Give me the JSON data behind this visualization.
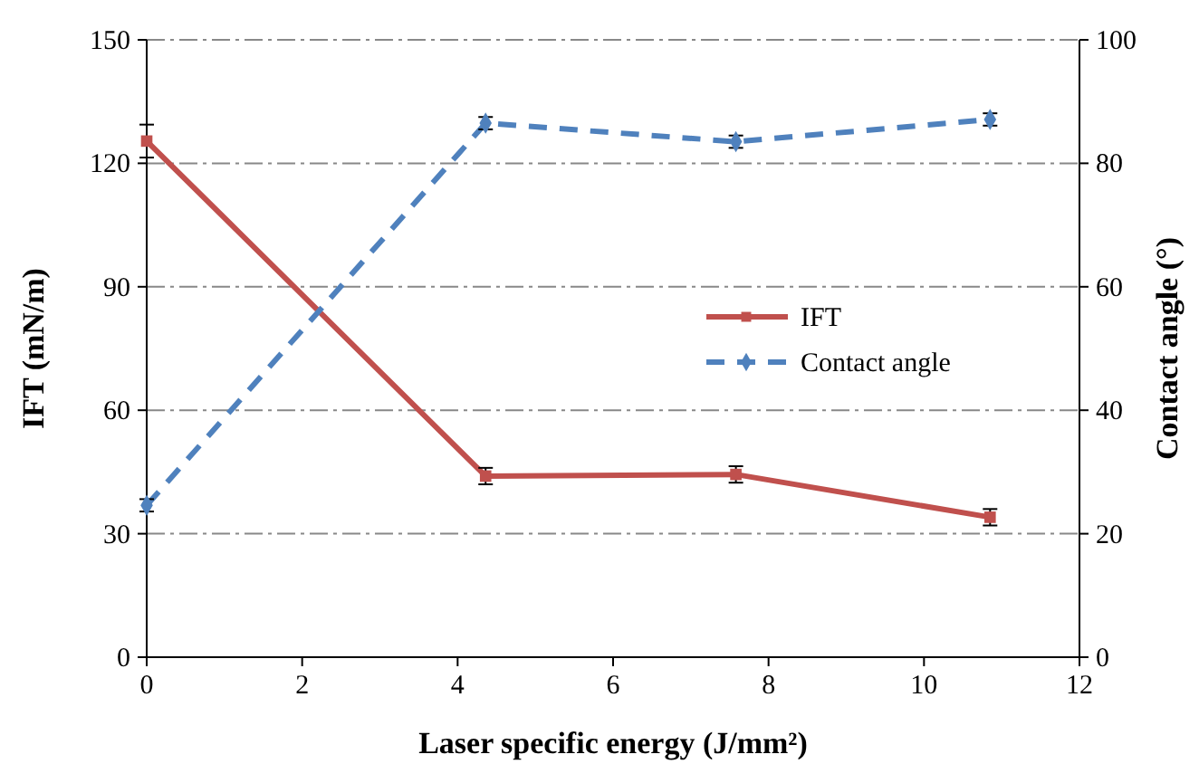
{
  "chart_data": {
    "type": "line",
    "xlabel": "Laser specific energy (J/mm²)",
    "ylabel": "IFT (mN/m)",
    "y2label": "Contact angle (°)",
    "x": [
      0,
      4.36,
      7.58,
      10.85
    ],
    "series": [
      {
        "name": "IFT",
        "color": "#c0504d",
        "values": [
          125.4,
          44,
          44.4,
          34
        ],
        "errors": [
          4,
          2,
          2,
          2
        ],
        "marker": "square",
        "line_style": "solid"
      },
      {
        "name": "Contact angle",
        "color": "#4f81bd",
        "values": [
          24.6,
          86.5,
          83.5,
          87.1
        ],
        "errors": [
          1,
          1,
          1,
          1
        ],
        "marker": "diamond",
        "line_style": "dashed",
        "axis": "y2"
      }
    ],
    "xlim": [
      0,
      12
    ],
    "xticks": [
      0,
      2,
      4,
      6,
      8,
      10,
      12
    ],
    "ylim": [
      0,
      150
    ],
    "yticks": [
      0,
      30,
      60,
      90,
      120,
      150
    ],
    "y2lim": [
      0,
      100
    ],
    "y2ticks": [
      0,
      20,
      40,
      60,
      80,
      100
    ],
    "grid": "y",
    "legend": "right"
  }
}
